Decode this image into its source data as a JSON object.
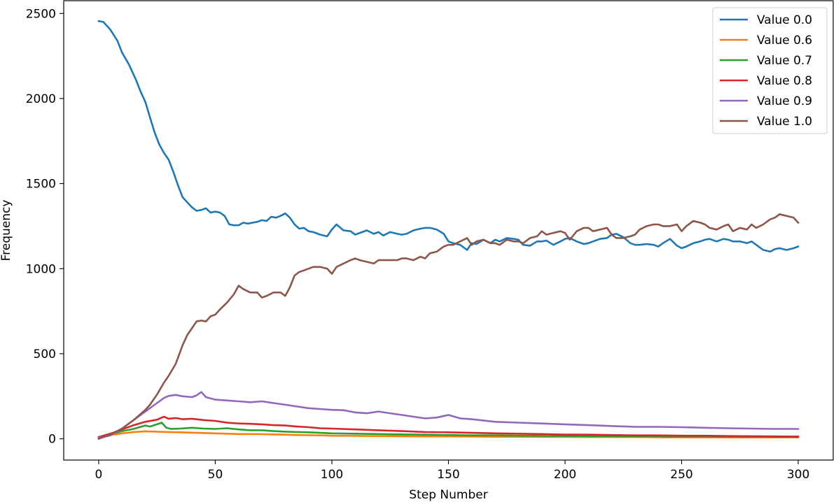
{
  "chart_data": {
    "type": "line",
    "title": "",
    "xlabel": "Step Number",
    "ylabel": "Frequency",
    "xlim": [
      -15,
      315
    ],
    "ylim": [
      -125,
      2575
    ],
    "xticks": [
      0,
      50,
      100,
      150,
      200,
      250,
      300
    ],
    "yticks": [
      0,
      500,
      1000,
      1500,
      2000,
      2500
    ],
    "grid": false,
    "legend_position": "top-right",
    "series": [
      {
        "name": "Value 0.0",
        "color": "#1f77b4",
        "x": [
          0,
          2,
          5,
          8,
          10,
          13,
          16,
          18,
          20,
          22,
          24,
          26,
          28,
          30,
          32,
          34,
          36,
          38,
          40,
          42,
          44,
          46,
          48,
          50,
          52,
          54,
          56,
          58,
          60,
          62,
          64,
          66,
          68,
          70,
          72,
          74,
          76,
          78,
          80,
          82,
          84,
          86,
          88,
          90,
          92,
          95,
          98,
          100,
          102,
          105,
          108,
          110,
          112,
          115,
          118,
          120,
          122,
          125,
          128,
          130,
          132,
          135,
          138,
          140,
          142,
          145,
          148,
          150,
          152,
          155,
          158,
          160,
          162,
          165,
          168,
          170,
          172,
          175,
          178,
          180,
          182,
          185,
          188,
          190,
          192,
          195,
          198,
          200,
          202,
          205,
          208,
          210,
          212,
          215,
          218,
          220,
          222,
          225,
          228,
          230,
          232,
          235,
          238,
          240,
          242,
          245,
          248,
          250,
          252,
          255,
          258,
          260,
          262,
          265,
          268,
          270,
          272,
          275,
          278,
          280,
          282,
          285,
          288,
          290,
          292,
          295,
          298,
          300
        ],
        "y": [
          2455,
          2450,
          2405,
          2340,
          2270,
          2200,
          2110,
          2040,
          1980,
          1890,
          1800,
          1730,
          1680,
          1640,
          1570,
          1490,
          1420,
          1390,
          1360,
          1340,
          1345,
          1355,
          1330,
          1335,
          1330,
          1310,
          1260,
          1255,
          1255,
          1270,
          1265,
          1270,
          1275,
          1285,
          1280,
          1305,
          1300,
          1310,
          1325,
          1300,
          1260,
          1235,
          1240,
          1220,
          1215,
          1200,
          1190,
          1230,
          1260,
          1225,
          1220,
          1200,
          1210,
          1225,
          1205,
          1215,
          1195,
          1215,
          1205,
          1200,
          1205,
          1225,
          1235,
          1240,
          1240,
          1230,
          1205,
          1160,
          1150,
          1140,
          1110,
          1150,
          1145,
          1170,
          1150,
          1170,
          1160,
          1180,
          1175,
          1170,
          1140,
          1135,
          1160,
          1160,
          1165,
          1140,
          1160,
          1175,
          1180,
          1160,
          1145,
          1150,
          1160,
          1175,
          1180,
          1200,
          1205,
          1185,
          1150,
          1140,
          1140,
          1145,
          1140,
          1130,
          1150,
          1175,
          1135,
          1120,
          1130,
          1150,
          1160,
          1170,
          1175,
          1160,
          1175,
          1170,
          1160,
          1160,
          1150,
          1160,
          1140,
          1110,
          1100,
          1115,
          1120,
          1110,
          1120,
          1130
        ]
      },
      {
        "name": "Value 0.6",
        "color": "#ff7f0e",
        "x": [
          0,
          5,
          10,
          15,
          20,
          25,
          30,
          35,
          40,
          45,
          50,
          55,
          60,
          65,
          70,
          75,
          80,
          85,
          90,
          95,
          100,
          110,
          120,
          130,
          140,
          150,
          160,
          170,
          180,
          190,
          200,
          210,
          220,
          230,
          240,
          250,
          260,
          270,
          280,
          290,
          300
        ],
        "y": [
          5,
          22,
          32,
          40,
          44,
          42,
          40,
          38,
          36,
          34,
          32,
          30,
          28,
          28,
          27,
          26,
          24,
          22,
          21,
          20,
          18,
          17,
          16,
          15,
          14,
          14,
          13,
          12,
          12,
          11,
          11,
          10,
          10,
          10,
          9,
          9,
          9,
          8,
          8,
          8,
          8
        ]
      },
      {
        "name": "Value 0.7",
        "color": "#2ca02c",
        "x": [
          0,
          5,
          10,
          15,
          18,
          20,
          22,
          25,
          27,
          29,
          31,
          35,
          40,
          45,
          50,
          55,
          60,
          65,
          70,
          75,
          80,
          85,
          90,
          95,
          100,
          110,
          120,
          130,
          140,
          150,
          160,
          170,
          180,
          190,
          200,
          210,
          220,
          230,
          240,
          250,
          260,
          270,
          280,
          290,
          300
        ],
        "y": [
          5,
          28,
          45,
          58,
          70,
          78,
          72,
          85,
          95,
          65,
          58,
          60,
          65,
          60,
          58,
          62,
          55,
          50,
          50,
          45,
          42,
          40,
          38,
          35,
          32,
          30,
          28,
          26,
          24,
          22,
          20,
          20,
          18,
          17,
          16,
          15,
          15,
          14,
          14,
          13,
          13,
          12,
          12,
          11,
          11
        ]
      },
      {
        "name": "Value 0.8",
        "color": "#d62728",
        "x": [
          0,
          5,
          10,
          15,
          20,
          25,
          28,
          30,
          33,
          36,
          40,
          45,
          50,
          55,
          60,
          65,
          70,
          75,
          80,
          85,
          90,
          95,
          100,
          110,
          120,
          130,
          140,
          150,
          160,
          170,
          180,
          190,
          200,
          210,
          220,
          230,
          240,
          250,
          260,
          270,
          280,
          290,
          300
        ],
        "y": [
          10,
          30,
          55,
          80,
          100,
          112,
          130,
          118,
          122,
          115,
          118,
          110,
          105,
          95,
          90,
          88,
          85,
          80,
          78,
          72,
          68,
          62,
          60,
          55,
          50,
          45,
          40,
          38,
          35,
          32,
          30,
          28,
          25,
          24,
          22,
          20,
          20,
          18,
          18,
          16,
          15,
          14,
          13
        ]
      },
      {
        "name": "Value 0.9",
        "color": "#9467bd",
        "x": [
          0,
          5,
          10,
          15,
          20,
          25,
          28,
          30,
          33,
          36,
          40,
          42,
          44,
          46,
          50,
          55,
          60,
          65,
          70,
          75,
          80,
          85,
          90,
          95,
          100,
          105,
          110,
          115,
          120,
          125,
          130,
          135,
          140,
          145,
          150,
          155,
          160,
          170,
          180,
          190,
          200,
          210,
          220,
          230,
          240,
          250,
          260,
          270,
          280,
          290,
          300
        ],
        "y": [
          5,
          20,
          60,
          110,
          160,
          210,
          240,
          252,
          258,
          250,
          245,
          255,
          275,
          245,
          230,
          225,
          220,
          215,
          220,
          210,
          200,
          190,
          180,
          175,
          170,
          168,
          155,
          150,
          160,
          150,
          140,
          130,
          120,
          125,
          140,
          120,
          115,
          100,
          95,
          90,
          85,
          80,
          75,
          70,
          70,
          68,
          65,
          62,
          60,
          58,
          58
        ]
      },
      {
        "name": "Value 1.0",
        "color": "#8c564b",
        "x": [
          0,
          5,
          10,
          15,
          20,
          22,
          25,
          28,
          30,
          33,
          36,
          38,
          40,
          42,
          44,
          46,
          48,
          50,
          52,
          55,
          58,
          60,
          62,
          65,
          68,
          70,
          72,
          75,
          78,
          80,
          82,
          84,
          86,
          88,
          90,
          92,
          95,
          98,
          100,
          102,
          105,
          108,
          110,
          112,
          115,
          118,
          120,
          122,
          125,
          128,
          130,
          132,
          135,
          138,
          140,
          142,
          145,
          148,
          150,
          152,
          155,
          158,
          160,
          162,
          165,
          168,
          170,
          172,
          175,
          178,
          180,
          182,
          185,
          188,
          190,
          192,
          195,
          198,
          200,
          202,
          205,
          208,
          210,
          212,
          215,
          218,
          220,
          222,
          225,
          228,
          230,
          232,
          235,
          238,
          240,
          242,
          245,
          248,
          250,
          252,
          255,
          258,
          260,
          262,
          265,
          268,
          270,
          272,
          275,
          278,
          280,
          282,
          285,
          288,
          290,
          292,
          295,
          298,
          300
        ],
        "y": [
          0,
          25,
          60,
          110,
          170,
          200,
          260,
          330,
          370,
          440,
          550,
          610,
          650,
          690,
          695,
          690,
          720,
          730,
          760,
          800,
          850,
          900,
          880,
          860,
          860,
          830,
          840,
          860,
          860,
          840,
          890,
          960,
          980,
          990,
          1000,
          1010,
          1010,
          1000,
          970,
          1010,
          1030,
          1050,
          1060,
          1050,
          1040,
          1030,
          1050,
          1050,
          1050,
          1050,
          1060,
          1060,
          1050,
          1070,
          1060,
          1090,
          1100,
          1130,
          1140,
          1140,
          1160,
          1180,
          1140,
          1160,
          1170,
          1150,
          1150,
          1140,
          1170,
          1160,
          1160,
          1150,
          1180,
          1190,
          1220,
          1200,
          1210,
          1220,
          1210,
          1170,
          1220,
          1240,
          1240,
          1220,
          1230,
          1240,
          1200,
          1180,
          1180,
          1190,
          1200,
          1230,
          1250,
          1260,
          1260,
          1250,
          1250,
          1260,
          1220,
          1250,
          1280,
          1270,
          1260,
          1240,
          1230,
          1250,
          1260,
          1220,
          1240,
          1230,
          1260,
          1240,
          1260,
          1290,
          1300,
          1320,
          1310,
          1300,
          1270
        ]
      }
    ]
  }
}
